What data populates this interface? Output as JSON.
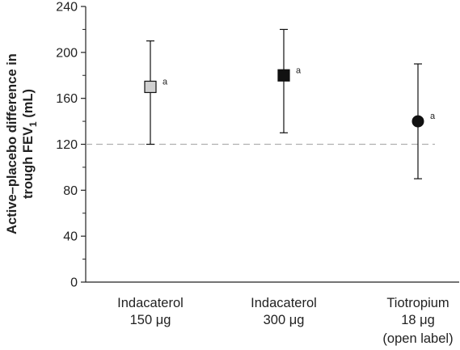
{
  "chart_data": {
    "type": "scatter",
    "subtype": "point-with-error-bars",
    "title": "",
    "ylabel_line1": "Active–placebo difference in",
    "ylabel_line2_prefix": "trough FEV",
    "ylabel_line2_sub": "1",
    "ylabel_line2_suffix": " (mL)",
    "ylim": [
      0,
      240
    ],
    "yticks": [
      0,
      40,
      80,
      120,
      160,
      200,
      240
    ],
    "grid": false,
    "reference_line": {
      "y": 120,
      "style": "dashed",
      "color": "#b0b0b0"
    },
    "categories": [
      {
        "lines": [
          "Indacaterol",
          "150 μg"
        ]
      },
      {
        "lines": [
          "Indacaterol",
          "300 μg"
        ]
      },
      {
        "lines": [
          "Tiotropium",
          "18 μg",
          "(open label)"
        ]
      }
    ],
    "points": [
      {
        "value": 170,
        "lower": 120,
        "upper": 210,
        "marker": "square",
        "fill": "#d0d0d0",
        "annotation": "a"
      },
      {
        "value": 180,
        "lower": 130,
        "upper": 220,
        "marker": "square",
        "fill": "#111111",
        "annotation": "a"
      },
      {
        "value": 140,
        "lower": 90,
        "upper": 190,
        "marker": "circle",
        "fill": "#111111",
        "annotation": "a"
      }
    ]
  }
}
